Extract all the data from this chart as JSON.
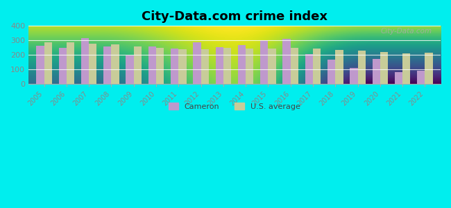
{
  "title": "City-Data.com crime index",
  "years": [
    2005,
    2006,
    2007,
    2008,
    2009,
    2010,
    2011,
    2012,
    2013,
    2014,
    2015,
    2016,
    2017,
    2018,
    2019,
    2020,
    2021,
    2022
  ],
  "cameron": [
    260,
    248,
    315,
    258,
    197,
    258,
    242,
    288,
    255,
    268,
    302,
    308,
    205,
    165,
    110,
    172,
    80,
    90
  ],
  "us_avg": [
    285,
    285,
    278,
    270,
    258,
    247,
    238,
    238,
    250,
    244,
    244,
    247,
    243,
    233,
    228,
    220,
    210,
    215
  ],
  "cameron_color": "#bf99cc",
  "us_avg_color": "#c8cc99",
  "background_color": "#00eeee",
  "plot_bg_top": "#f0f5ee",
  "plot_bg_bottom": "#d8edc8",
  "ylim": [
    0,
    400
  ],
  "yticks": [
    0,
    100,
    200,
    300,
    400
  ],
  "bar_width": 0.35,
  "legend_labels": [
    "Cameron",
    "U.S. average"
  ],
  "watermark": "City-Data.com",
  "title_fontsize": 13,
  "tick_color": "#888888",
  "tick_fontsize": 7
}
